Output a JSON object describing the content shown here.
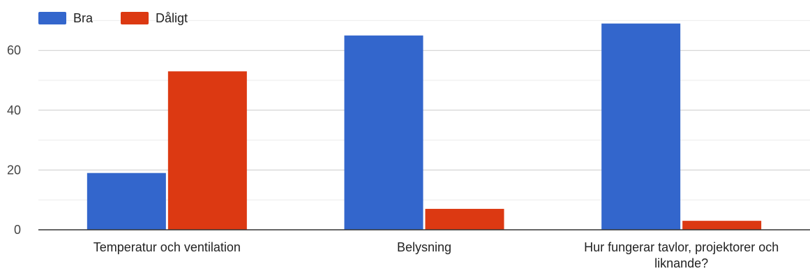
{
  "chart_data": {
    "type": "bar",
    "categories": [
      [
        "Temperatur och ventilation"
      ],
      [
        "Belysning"
      ],
      [
        "Hur fungerar tavlor, projektorer och",
        "liknande?"
      ]
    ],
    "series": [
      {
        "name": "Bra",
        "color": "#3366cc",
        "values": [
          19,
          65,
          69
        ]
      },
      {
        "name": "Dåligt",
        "color": "#dc3912",
        "values": [
          53,
          7,
          3
        ]
      }
    ],
    "yticks": [
      0,
      20,
      40,
      60
    ],
    "ylim": [
      0,
      70
    ],
    "grid": true,
    "legend_position": "top-left"
  }
}
